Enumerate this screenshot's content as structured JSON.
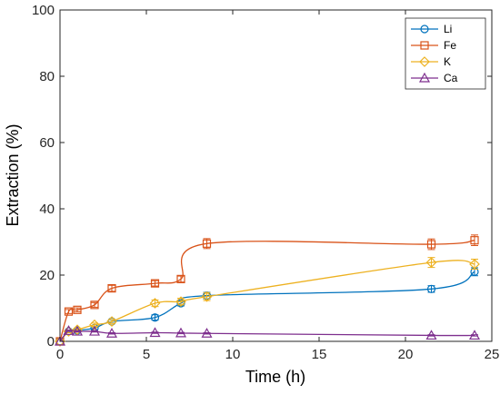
{
  "chart_data": {
    "type": "line",
    "title": "",
    "xlabel": "Time (h)",
    "ylabel": "Extraction (%)",
    "xlim": [
      0,
      25
    ],
    "ylim": [
      0,
      100
    ],
    "xticks": [
      "0",
      "5",
      "10",
      "15",
      "20",
      "25"
    ],
    "yticks": [
      "0",
      "20",
      "40",
      "60",
      "80",
      "100"
    ],
    "grid": false,
    "legend_position": "top-right",
    "series": [
      {
        "name": "Li",
        "color": "#0072BD",
        "marker": "circle",
        "x": [
          0,
          0.5,
          1,
          2,
          3,
          5.5,
          7,
          8.5,
          21.5,
          24
        ],
        "y": [
          0,
          3,
          3.3,
          4,
          6,
          7.2,
          11.5,
          13.8,
          15.8,
          21
        ],
        "err": [
          0,
          0.3,
          0.3,
          0.4,
          0.5,
          0.8,
          0.8,
          1.0,
          1.0,
          1.2
        ]
      },
      {
        "name": "Fe",
        "color": "#D95319",
        "marker": "square",
        "x": [
          0,
          0.5,
          1,
          2,
          3,
          5.5,
          7,
          8.5,
          21.5,
          24
        ],
        "y": [
          0,
          9,
          9.5,
          11,
          16,
          17.5,
          18.8,
          29.5,
          29.3,
          30.5
        ],
        "err": [
          0,
          0.6,
          0.6,
          0.7,
          0.9,
          0.8,
          0.9,
          1.5,
          1.6,
          1.6
        ]
      },
      {
        "name": "K",
        "color": "#EDB120",
        "marker": "diamond",
        "x": [
          0,
          0.5,
          1,
          2,
          3,
          5.5,
          7,
          8.5,
          21.5,
          24
        ],
        "y": [
          0,
          3,
          3.5,
          5,
          6,
          11.5,
          12,
          13.5,
          23.8,
          23.3
        ],
        "err": [
          0,
          0.4,
          0.4,
          0.5,
          0.6,
          1.0,
          1.0,
          1.2,
          1.5,
          1.5
        ]
      },
      {
        "name": "Ca",
        "color": "#7E2F8E",
        "marker": "triangle",
        "x": [
          0,
          0.5,
          1,
          2,
          3,
          5.5,
          7,
          8.5,
          21.5,
          24
        ],
        "y": [
          0,
          3.2,
          3,
          3,
          2.4,
          2.6,
          2.5,
          2.4,
          1.8,
          1.8
        ],
        "err": [
          0,
          0.2,
          0.2,
          0.2,
          0.2,
          0.2,
          0.2,
          0.2,
          0.2,
          0.2
        ]
      }
    ]
  }
}
